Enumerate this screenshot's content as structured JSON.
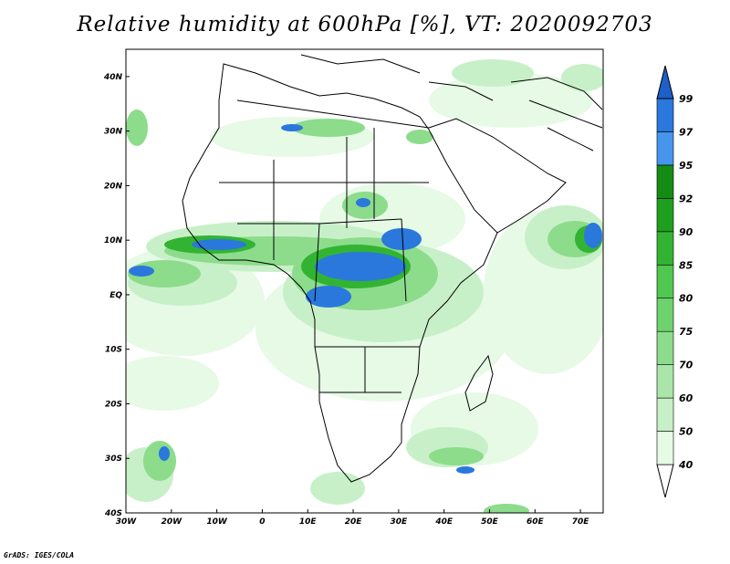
{
  "title": "Relative humidity at 600hPa [%], VT: 2020092703",
  "credit": "GrADS: IGES/COLA",
  "map": {
    "lon_range": [
      -30,
      75
    ],
    "lat_range": [
      -40,
      45
    ],
    "lon_ticks": [
      {
        "value": -30,
        "label": "30W"
      },
      {
        "value": -20,
        "label": "20W"
      },
      {
        "value": -10,
        "label": "10W"
      },
      {
        "value": 0,
        "label": "0"
      },
      {
        "value": 10,
        "label": "10E"
      },
      {
        "value": 20,
        "label": "20E"
      },
      {
        "value": 30,
        "label": "30E"
      },
      {
        "value": 40,
        "label": "40E"
      },
      {
        "value": 50,
        "label": "50E"
      },
      {
        "value": 60,
        "label": "60E"
      },
      {
        "value": 70,
        "label": "70E"
      }
    ],
    "lat_ticks": [
      {
        "value": 40,
        "label": "40N"
      },
      {
        "value": 30,
        "label": "30N"
      },
      {
        "value": 20,
        "label": "20N"
      },
      {
        "value": 10,
        "label": "10N"
      },
      {
        "value": 0,
        "label": "EQ"
      },
      {
        "value": -10,
        "label": "10S"
      },
      {
        "value": -20,
        "label": "20S"
      },
      {
        "value": -30,
        "label": "30S"
      },
      {
        "value": -40,
        "label": "40S"
      }
    ]
  },
  "colorbar": {
    "levels": [
      "40",
      "50",
      "60",
      "70",
      "75",
      "80",
      "85",
      "90",
      "92",
      "95",
      "97",
      "99"
    ],
    "colors": [
      "#ffffff",
      "#e6fae6",
      "#c8f0c8",
      "#aae6aa",
      "#8cdc8c",
      "#6ed26e",
      "#50c850",
      "#32b432",
      "#1ea01e",
      "#148c14",
      "#4696ee",
      "#2a78dc",
      "#1e5fc8"
    ]
  }
}
